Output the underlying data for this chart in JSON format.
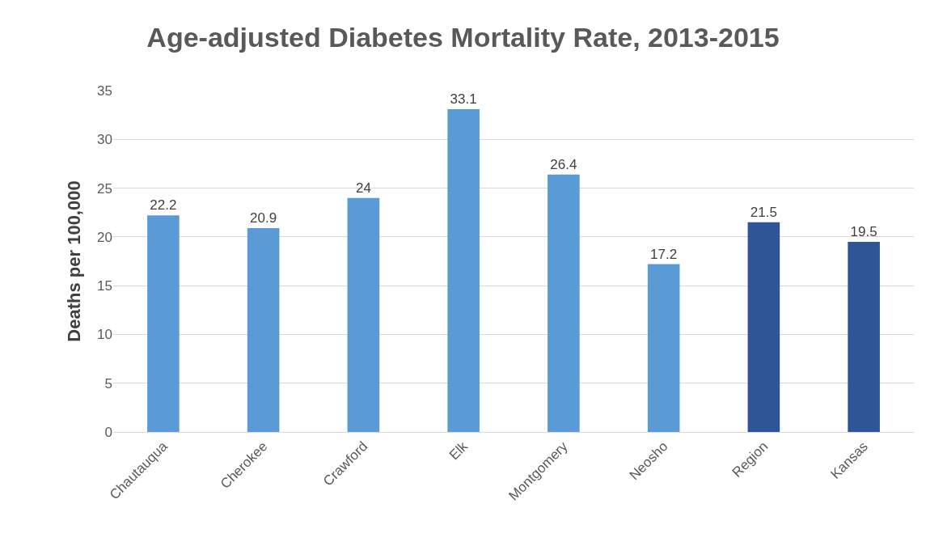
{
  "chart_data": {
    "type": "bar",
    "title": "Age-adjusted Diabetes Mortality Rate, 2013-2015",
    "ylabel": "Deaths per 100,000",
    "categories": [
      "Chautauqua",
      "Cherokee",
      "Crawford",
      "Elk",
      "Montgomery",
      "Neosho",
      "Region",
      "Kansas"
    ],
    "values": [
      22.2,
      20.9,
      24,
      33.1,
      26.4,
      17.2,
      21.5,
      19.5
    ],
    "colors": [
      "#5b9bd5",
      "#5b9bd5",
      "#5b9bd5",
      "#5b9bd5",
      "#5b9bd5",
      "#5b9bd5",
      "#2f5597",
      "#2f5597"
    ],
    "ylim": [
      0,
      35
    ],
    "yticks": [
      0,
      5,
      10,
      15,
      20,
      25,
      30,
      35
    ],
    "grid": "y",
    "data_labels": true
  }
}
